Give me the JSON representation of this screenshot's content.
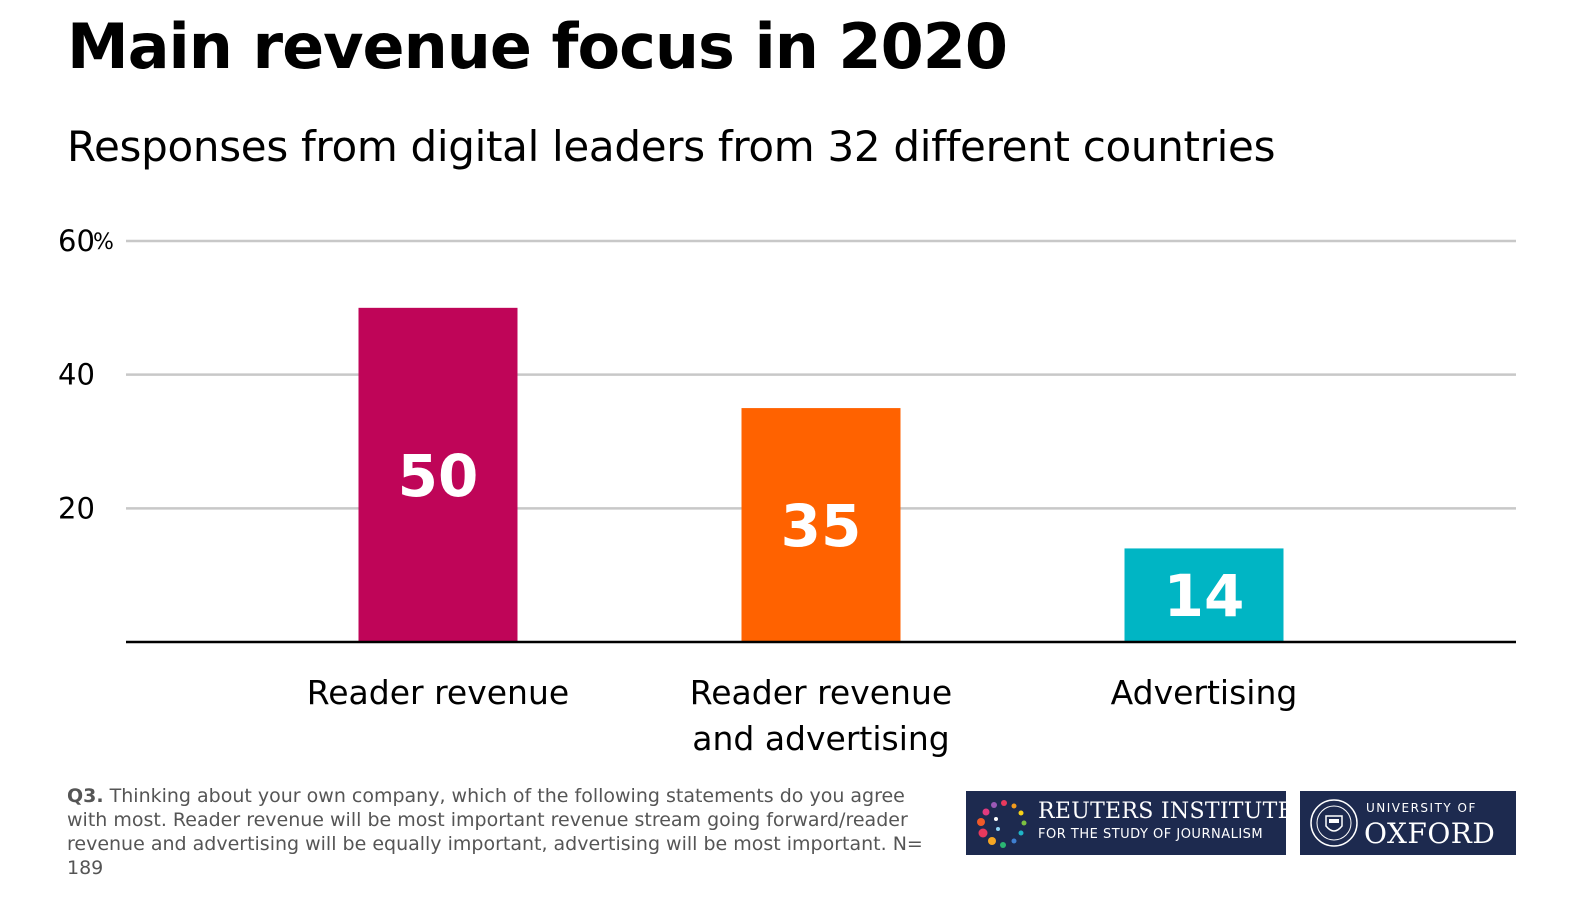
{
  "title": "Main revenue focus in 2020",
  "subtitle": "Responses from digital leaders from 32 different countries",
  "chart_data": {
    "type": "bar",
    "categories": [
      "Reader revenue",
      "Reader revenue and advertising",
      "Advertising"
    ],
    "category_lines": [
      [
        "Reader revenue"
      ],
      [
        "Reader revenue",
        "and advertising"
      ],
      [
        "Advertising"
      ]
    ],
    "values": [
      50,
      35,
      14
    ],
    "colors": [
      "#bf0558",
      "#ff6200",
      "#00b5c4"
    ],
    "ylim": [
      0,
      60
    ],
    "yticks": [
      20,
      40,
      60
    ],
    "ytick_labels": [
      "20",
      "40",
      "60"
    ],
    "y_unit": "%",
    "grid": true,
    "title": "Main revenue focus in 2020",
    "xlabel": "",
    "ylabel": ""
  },
  "footnote": {
    "question_label": "Q3.",
    "text": "Thinking about your own company, which of the following statements do you agree with most. Reader revenue will be most important revenue stream going forward/reader revenue and advertising will be equally important, advertising will be most important. N= 189"
  },
  "logos": {
    "reuters_name": "REUTERS INSTITUTE",
    "reuters_sub": "FOR THE STUDY OF JOURNALISM",
    "oxford_top": "UNIVERSITY OF",
    "oxford_main": "OXFORD",
    "background_color": "#1d2a4f"
  }
}
